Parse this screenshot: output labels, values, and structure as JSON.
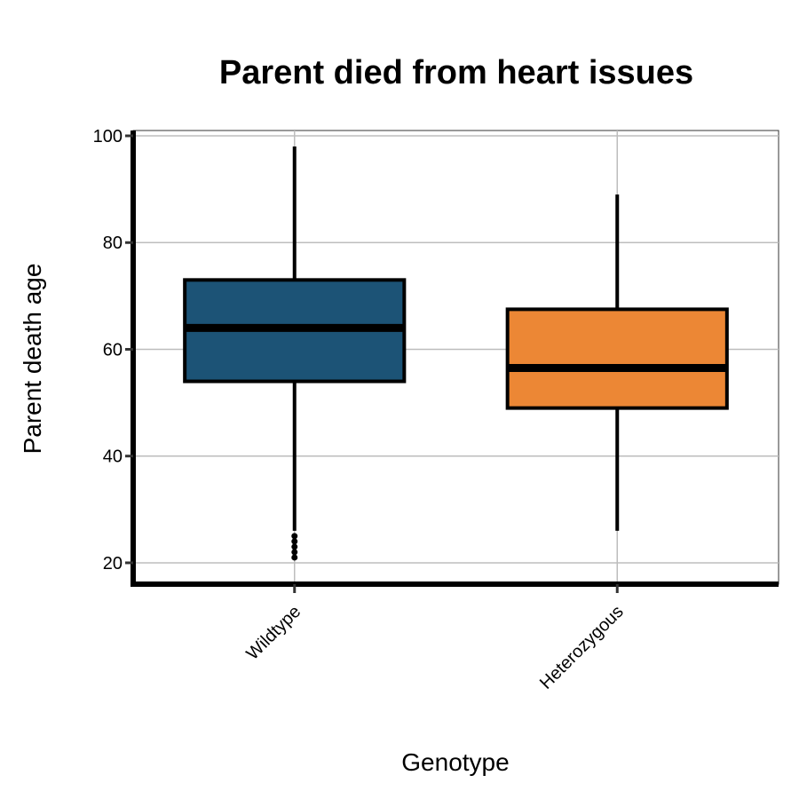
{
  "chart_data": {
    "type": "boxplot",
    "title": "Parent died from heart issues",
    "xlabel": "Genotype",
    "ylabel": "Parent death age",
    "ylim": [
      16,
      101
    ],
    "yticks": [
      20,
      40,
      60,
      80,
      100
    ],
    "grid": true,
    "legend": "none",
    "categories": [
      "Wildtype",
      "Heterozygous"
    ],
    "boxes": [
      {
        "category": "Wildtype",
        "color": "#1c5376",
        "whisker_low": 26,
        "q1": 54,
        "median": 64,
        "q3": 73,
        "whisker_high": 98,
        "outliers": [
          21,
          22,
          23,
          24,
          25
        ]
      },
      {
        "category": "Heterozygous",
        "color": "#ec8735",
        "whisker_low": 26,
        "q1": 49,
        "median": 56.5,
        "q3": 67.5,
        "whisker_high": 89,
        "outliers": []
      }
    ]
  }
}
